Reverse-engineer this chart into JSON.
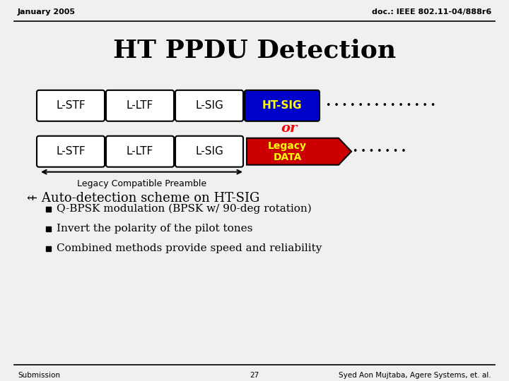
{
  "title": "HT PPDU Detection",
  "header_left": "January 2005",
  "header_right": "doc.: IEEE 802.11-04/888r6",
  "footer_left": "Submission",
  "footer_center": "27",
  "footer_right": "Syed Aon Mujtaba, Agere Systems, et. al.",
  "row1_labels": [
    "L-STF",
    "L-LTF",
    "L-SIG",
    "HT-SIG"
  ],
  "row2_labels": [
    "L-STF",
    "L-LTF",
    "L-SIG",
    "Legacy\nDATA"
  ],
  "or_text": "or",
  "arrow_label": "Legacy Compatible Preamble",
  "bullet_header": "⇷ Auto-detection scheme on HT-SIG",
  "bullets": [
    "Q-BPSK modulation (BPSK w/ 90-deg rotation)",
    "Invert the polarity of the pilot tones",
    "Combined methods provide speed and reliability"
  ],
  "ht_sig_color": "#0000CC",
  "ht_sig_text_color": "#FFFF00",
  "legacy_data_color": "#CC0000",
  "legacy_data_text_color": "#FFFF00",
  "box_bg": "#FFFFFF",
  "box_border": "#000000",
  "or_color": "#FF0000",
  "dots_row1": 14,
  "dots_row2": 7,
  "bg_color": "#F0F0F0"
}
